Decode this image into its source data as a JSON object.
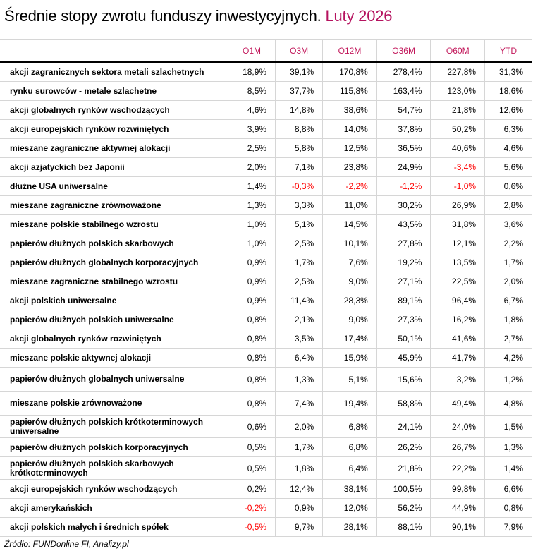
{
  "title": {
    "main": "Średnie stopy zwrotu funduszy inwestycyjnych.",
    "accent": "Luty 2026"
  },
  "colors": {
    "accent": "#b5135f",
    "negative": "#ff0000"
  },
  "columns": [
    "",
    "O1M",
    "O3M",
    "O12M",
    "O36M",
    "O60M",
    "YTD"
  ],
  "rows": [
    {
      "name": "akcji zagranicznych sektora metali szlachetnych",
      "values": [
        "18,9%",
        "39,1%",
        "170,8%",
        "278,4%",
        "227,8%",
        "31,3%"
      ]
    },
    {
      "name": "rynku surowców - metale szlachetne",
      "values": [
        "8,5%",
        "37,7%",
        "115,8%",
        "163,4%",
        "123,0%",
        "18,6%"
      ]
    },
    {
      "name": "akcji globalnych rynków wschodzących",
      "values": [
        "4,6%",
        "14,8%",
        "38,6%",
        "54,7%",
        "21,8%",
        "12,6%"
      ]
    },
    {
      "name": "akcji europejskich rynków rozwiniętych",
      "values": [
        "3,9%",
        "8,8%",
        "14,0%",
        "37,8%",
        "50,2%",
        "6,3%"
      ]
    },
    {
      "name": "mieszane zagraniczne aktywnej alokacji",
      "values": [
        "2,5%",
        "5,8%",
        "12,5%",
        "36,5%",
        "40,6%",
        "4,6%"
      ]
    },
    {
      "name": "akcji azjatyckich bez Japonii",
      "values": [
        "2,0%",
        "7,1%",
        "23,8%",
        "24,9%",
        "-3,4%",
        "5,6%"
      ]
    },
    {
      "name": "dłużne USA uniwersalne",
      "values": [
        "1,4%",
        "-0,3%",
        "-2,2%",
        "-1,2%",
        "-1,0%",
        "0,6%"
      ]
    },
    {
      "name": "mieszane zagraniczne zrównoważone",
      "values": [
        "1,3%",
        "3,3%",
        "11,0%",
        "30,2%",
        "26,9%",
        "2,8%"
      ]
    },
    {
      "name": "mieszane polskie stabilnego wzrostu",
      "values": [
        "1,0%",
        "5,1%",
        "14,5%",
        "43,5%",
        "31,8%",
        "3,6%"
      ]
    },
    {
      "name": "papierów dłużnych polskich skarbowych",
      "values": [
        "1,0%",
        "2,5%",
        "10,1%",
        "27,8%",
        "12,1%",
        "2,2%"
      ]
    },
    {
      "name": "papierów dłużnych globalnych korporacyjnych",
      "values": [
        "0,9%",
        "1,7%",
        "7,6%",
        "19,2%",
        "13,5%",
        "1,7%"
      ]
    },
    {
      "name": "mieszane zagraniczne stabilnego wzrostu",
      "values": [
        "0,9%",
        "2,5%",
        "9,0%",
        "27,1%",
        "22,5%",
        "2,0%"
      ]
    },
    {
      "name": "akcji polskich uniwersalne",
      "values": [
        "0,9%",
        "11,4%",
        "28,3%",
        "89,1%",
        "96,4%",
        "6,7%"
      ]
    },
    {
      "name": "papierów dłużnych polskich uniwersalne",
      "values": [
        "0,8%",
        "2,1%",
        "9,0%",
        "27,3%",
        "16,2%",
        "1,8%"
      ]
    },
    {
      "name": "akcji globalnych rynków rozwiniętych",
      "values": [
        "0,8%",
        "3,5%",
        "17,4%",
        "50,1%",
        "41,6%",
        "2,7%"
      ]
    },
    {
      "name": "mieszane polskie aktywnej alokacji",
      "values": [
        "0,8%",
        "6,4%",
        "15,9%",
        "45,9%",
        "41,7%",
        "4,2%"
      ]
    },
    {
      "name": "papierów dłużnych globalnych uniwersalne",
      "values": [
        "0,8%",
        "1,3%",
        "5,1%",
        "15,6%",
        "3,2%",
        "1,2%"
      ]
    },
    {
      "name": "mieszane polskie zrównoważone",
      "values": [
        "0,8%",
        "7,4%",
        "19,4%",
        "58,8%",
        "49,4%",
        "4,8%"
      ]
    },
    {
      "name": "papierów dłużnych polskich krótkoterminowych uniwersalne",
      "values": [
        "0,6%",
        "2,0%",
        "6,8%",
        "24,1%",
        "24,0%",
        "1,5%"
      ]
    },
    {
      "name": "papierów dłużnych polskich korporacyjnych",
      "values": [
        "0,5%",
        "1,7%",
        "6,8%",
        "26,2%",
        "26,7%",
        "1,3%"
      ]
    },
    {
      "name": "papierów dłużnych polskich skarbowych krótkoterminowych",
      "values": [
        "0,5%",
        "1,8%",
        "6,4%",
        "21,8%",
        "22,2%",
        "1,4%"
      ]
    },
    {
      "name": "akcji europejskich rynków wschodzących",
      "values": [
        "0,2%",
        "12,4%",
        "38,1%",
        "100,5%",
        "99,8%",
        "6,6%"
      ]
    },
    {
      "name": "akcji amerykańskich",
      "values": [
        "-0,2%",
        "0,9%",
        "12,0%",
        "56,2%",
        "44,9%",
        "0,8%"
      ]
    },
    {
      "name": "akcji polskich małych i średnich spółek",
      "values": [
        "-0,5%",
        "9,7%",
        "28,1%",
        "88,1%",
        "90,1%",
        "7,9%"
      ]
    }
  ],
  "source": "Źródło: FUNDonline FI, Analizy.pl"
}
